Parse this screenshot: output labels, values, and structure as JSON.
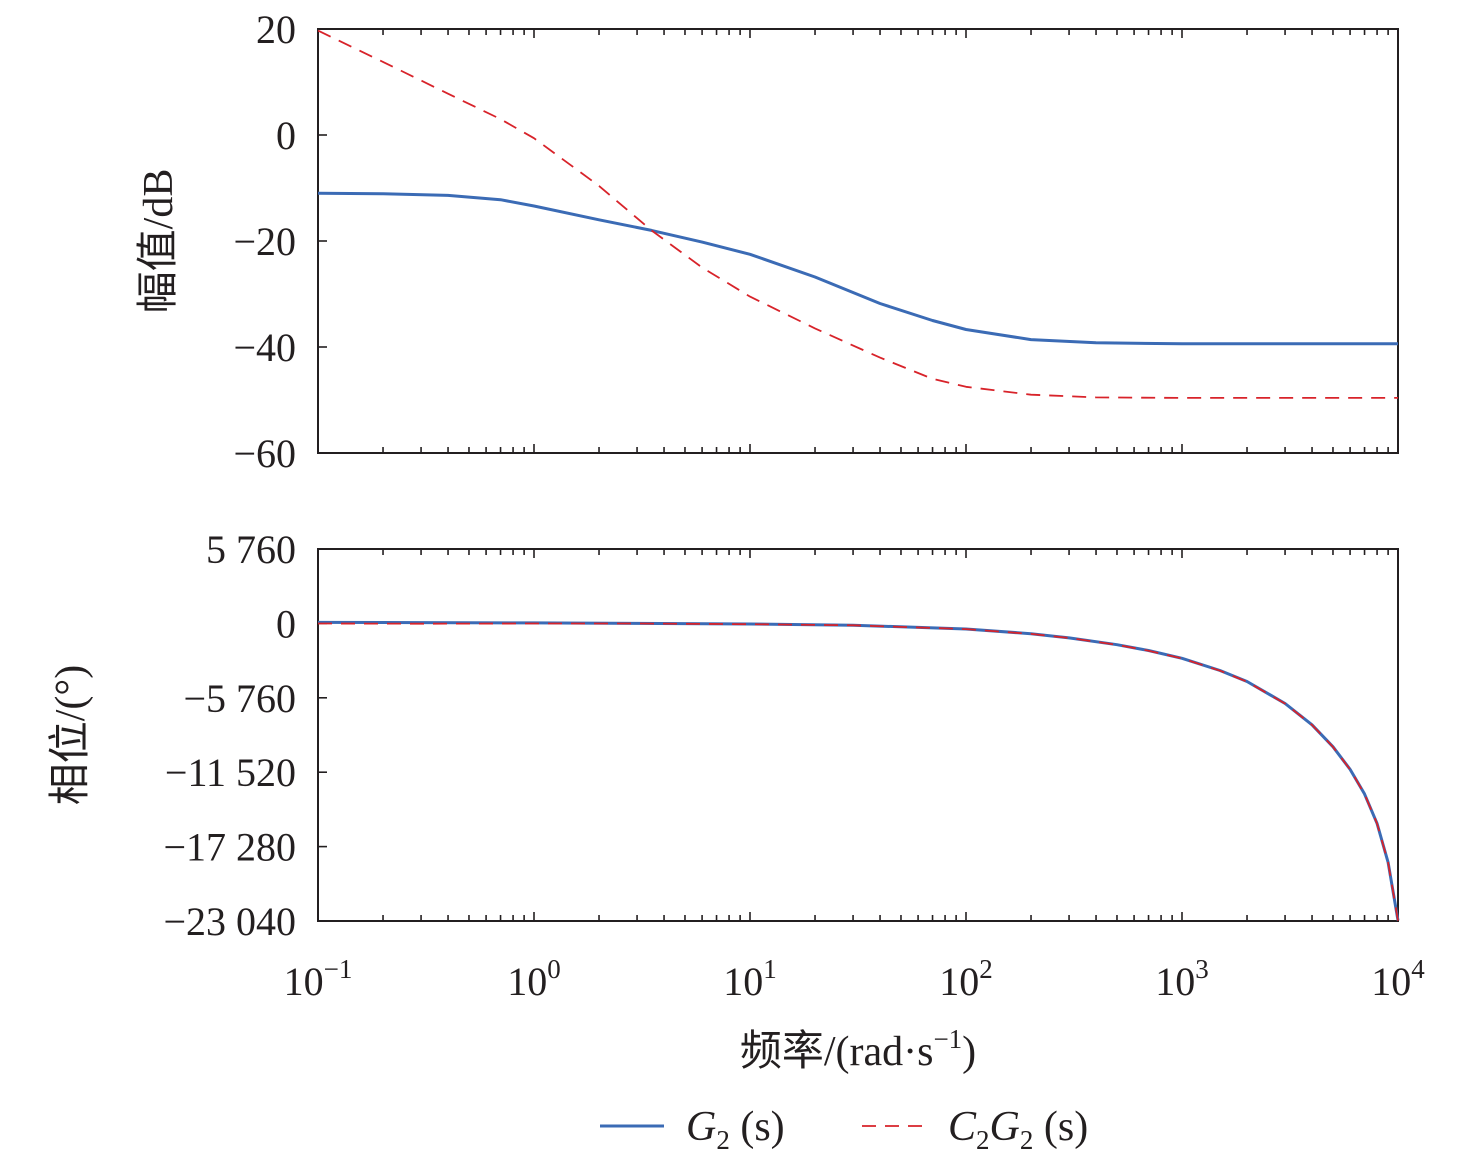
{
  "chart_data": {
    "type": "line",
    "xscale": "log",
    "x_label": "频率/(rad·s",
    "x_label_sup": "−1",
    "x_label_end": ")",
    "x_ticks": [
      {
        "value": 0.1,
        "base": "10",
        "exp": "−1"
      },
      {
        "value": 1,
        "base": "10",
        "exp": "0"
      },
      {
        "value": 10,
        "base": "10",
        "exp": "1"
      },
      {
        "value": 100,
        "base": "10",
        "exp": "2"
      },
      {
        "value": 1000,
        "base": "10",
        "exp": "3"
      },
      {
        "value": 10000,
        "base": "10",
        "exp": "4"
      }
    ],
    "xlim": [
      0.1,
      10000
    ],
    "legend": {
      "placement": "bottom-center",
      "items": [
        {
          "key": "g2",
          "main": "G",
          "sub": "2",
          "arg": " (s)",
          "color": "#3b6bb5",
          "dash": false
        },
        {
          "key": "c2g2",
          "main": "C",
          "sub": "2",
          "main2": "G",
          "sub2": "2",
          "arg": " (s)",
          "color": "#d8232a",
          "dash": true
        }
      ]
    },
    "panels": [
      {
        "name": "magnitude",
        "y_label": "幅值/dB",
        "ylim": [
          -60,
          20
        ],
        "y_ticks": [
          {
            "value": 20,
            "label": "20"
          },
          {
            "value": 0,
            "label": "0"
          },
          {
            "value": -20,
            "label": "−20"
          },
          {
            "value": -40,
            "label": "−40"
          },
          {
            "value": -60,
            "label": "−60"
          }
        ],
        "series": [
          {
            "key": "g2",
            "x": [
              0.1,
              0.2,
              0.4,
              0.7,
              1,
              2,
              3.5,
              6,
              10,
              20,
              40,
              70,
              100,
              200,
              400,
              1000,
              3000,
              10000
            ],
            "y": [
              -11,
              -11.1,
              -11.4,
              -12.2,
              -13.4,
              -16,
              -18,
              -20.2,
              -22.5,
              -26.8,
              -31.8,
              -35,
              -36.7,
              -38.6,
              -39.2,
              -39.4,
              -39.4,
              -39.4
            ]
          },
          {
            "key": "c2g2",
            "x": [
              0.1,
              0.2,
              0.4,
              0.7,
              1,
              2,
              3.5,
              6,
              10,
              20,
              40,
              70,
              100,
              200,
              400,
              1000,
              3000,
              10000
            ],
            "y": [
              19.7,
              13.8,
              7.8,
              3,
              -0.6,
              -9.6,
              -18,
              -25,
              -30.5,
              -36.5,
              -42,
              -46,
              -47.5,
              -49,
              -49.5,
              -49.6,
              -49.6,
              -49.6
            ]
          }
        ]
      },
      {
        "name": "phase",
        "y_label": "相位/(°)",
        "ylim": [
          -23040,
          5760
        ],
        "y_ticks": [
          {
            "value": 5760,
            "label": "5 760"
          },
          {
            "value": 0,
            "label": "0"
          },
          {
            "value": -5760,
            "label": "−5 760"
          },
          {
            "value": -11520,
            "label": "−11 520"
          },
          {
            "value": -17280,
            "label": "−17 280"
          },
          {
            "value": -23040,
            "label": "−23 040"
          }
        ],
        "series": [
          {
            "key": "g2",
            "x": [
              0.1,
              0.3,
              1,
              3,
              10,
              30,
              100,
              200,
              300,
              500,
              700,
              1000,
              1500,
              2000,
              3000,
              4000,
              5000,
              6000,
              7000,
              8000,
              9000,
              10000
            ],
            "y": [
              80,
              60,
              40,
              0,
              -50,
              -140,
              -430,
              -800,
              -1120,
              -1650,
              -2100,
              -2700,
              -3650,
              -4500,
              -6200,
              -7850,
              -9550,
              -11300,
              -13200,
              -15500,
              -18500,
              -23000
            ]
          },
          {
            "key": "c2g2",
            "x": [
              0.1,
              0.3,
              1,
              3,
              10,
              30,
              100,
              200,
              300,
              500,
              700,
              1000,
              1500,
              2000,
              3000,
              4000,
              5000,
              6000,
              7000,
              8000,
              9000,
              10000
            ],
            "y": [
              -10,
              -20,
              -10,
              -10,
              -60,
              -150,
              -440,
              -810,
              -1130,
              -1660,
              -2110,
              -2710,
              -3660,
              -4510,
              -6210,
              -7860,
              -9560,
              -11310,
              -13210,
              -15510,
              -18510,
              -23010
            ]
          }
        ]
      }
    ]
  }
}
